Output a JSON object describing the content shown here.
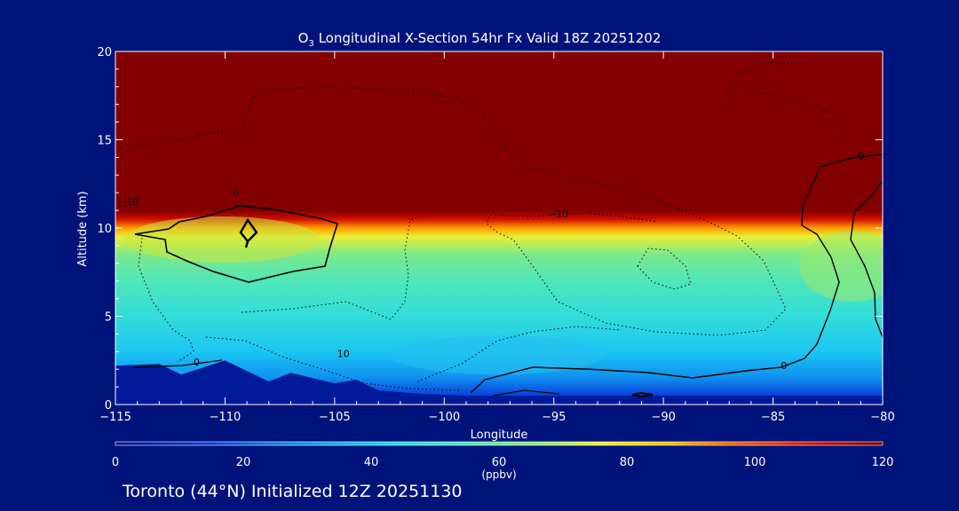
{
  "chart_data": {
    "type": "heatmap",
    "title_prefix": "O",
    "title_subscript": "3",
    "title_rest": " Longitudinal X-Section 54hr  Fx Valid 18Z 20251202",
    "xlabel": "Longitude",
    "ylabel": "Altitude (km)",
    "xlim": [
      -115,
      -80
    ],
    "ylim": [
      0,
      20
    ],
    "x_ticks": [
      -115,
      -110,
      -105,
      -100,
      -95,
      -90,
      -85,
      -80
    ],
    "x_tick_labels": [
      "−115",
      "−110",
      "−105",
      "−100",
      "−95",
      "−90",
      "−85",
      "−80"
    ],
    "y_ticks": [
      0,
      5,
      10,
      15,
      20
    ],
    "y_tick_labels": [
      "0",
      "5",
      "10",
      "15",
      "20"
    ],
    "colorbar": {
      "min": 0,
      "max": 120,
      "ticks": [
        0,
        20,
        40,
        60,
        80,
        100,
        120
      ],
      "tick_labels": [
        "0",
        "20",
        "40",
        "60",
        "80",
        "100",
        "120"
      ],
      "units": "(ppbv)"
    },
    "ozone_layers": [
      {
        "altitude_km": 0.5,
        "value": 15
      },
      {
        "altitude_km": 1.5,
        "value": 30
      },
      {
        "altitude_km": 3,
        "value": 40
      },
      {
        "altitude_km": 5,
        "value": 48
      },
      {
        "altitude_km": 7,
        "value": 55
      },
      {
        "altitude_km": 8.5,
        "value": 63
      },
      {
        "altitude_km": 9.5,
        "value": 75
      },
      {
        "altitude_km": 10,
        "value": 90
      },
      {
        "altitude_km": 10.5,
        "value": 110
      },
      {
        "altitude_km": 11,
        "value": 120
      },
      {
        "altitude_km": 20,
        "value": 120
      }
    ],
    "terrain_profile": [
      {
        "lon": -115,
        "alt": 2.2
      },
      {
        "lon": -113,
        "alt": 2.3
      },
      {
        "lon": -112,
        "alt": 1.7
      },
      {
        "lon": -110,
        "alt": 2.5
      },
      {
        "lon": -108,
        "alt": 1.3
      },
      {
        "lon": -107,
        "alt": 1.8
      },
      {
        "lon": -105,
        "alt": 1.2
      },
      {
        "lon": -104,
        "alt": 1.4
      },
      {
        "lon": -103,
        "alt": 0.8
      },
      {
        "lon": -101,
        "alt": 0.6
      },
      {
        "lon": -99,
        "alt": 0.5
      },
      {
        "lon": -80,
        "alt": 0.5
      }
    ],
    "contour_labels": [
      {
        "text": "0",
        "lon": -111.3,
        "alt": 2.2
      },
      {
        "text": "10",
        "lon": -104.6,
        "alt": 2.7
      },
      {
        "text": "−10",
        "lon": -94.8,
        "alt": 10.6
      },
      {
        "text": "0",
        "lon": -84.5,
        "alt": 2.0
      },
      {
        "text": "0",
        "lon": -81.0,
        "alt": 13.9
      },
      {
        "text": "−10",
        "lon": -114.4,
        "alt": 11.3
      },
      {
        "text": "0",
        "lon": -109.5,
        "alt": 11.8
      }
    ]
  },
  "footer": "Toronto (44°N) Initialized 12Z 20251130"
}
